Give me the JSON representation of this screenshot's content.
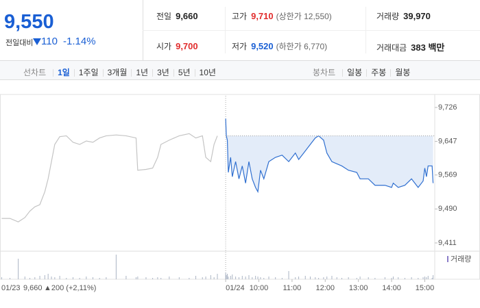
{
  "quote": {
    "price": "9,550",
    "change_label": "전일대비",
    "change": "110",
    "change_rate": "-1.14%"
  },
  "stats": [
    {
      "label": "전일",
      "value": "9,660",
      "color": "#222222"
    },
    {
      "label": "고가",
      "value": "9,710",
      "note": "(상한가 12,550)",
      "color": "#e12c2c"
    },
    {
      "label": "거래량",
      "value": "39,970",
      "color": "#222222"
    },
    {
      "label": "시가",
      "value": "9,700",
      "color": "#e12c2c"
    },
    {
      "label": "저가",
      "value": "9,520",
      "note": "(하한가 6,770)",
      "color": "#1a5fd4"
    },
    {
      "label": "거래대금",
      "value": "383 백만",
      "color": "#222222"
    }
  ],
  "tabs": {
    "line_label": "선차트",
    "line_periods": [
      "1일",
      "1주일",
      "3개월",
      "1년",
      "3년",
      "5년",
      "10년"
    ],
    "candle_label": "봉차트",
    "candle_periods": [
      "일봉",
      "주봉",
      "월봉"
    ]
  },
  "summary": {
    "date": "01/23",
    "price": "9,660",
    "change": "▲200 (+2,11%)"
  },
  "chart_data": {
    "type": "line",
    "xlim": [
      2.2,
      15.3
    ],
    "ylim": [
      9395,
      9753
    ],
    "yticks": [
      {
        "value": 9726,
        "label": "9,726"
      },
      {
        "value": 9647,
        "label": "9,647"
      },
      {
        "value": 9569,
        "label": "9,569"
      },
      {
        "value": 9490,
        "label": "9,490"
      },
      {
        "value": 9411,
        "label": "9,411"
      }
    ],
    "xticks": [
      {
        "value": 9,
        "label": "01/24"
      },
      {
        "value": 10,
        "label": "10:00"
      },
      {
        "value": 11,
        "label": "11:00"
      },
      {
        "value": 12,
        "label": "12:00"
      },
      {
        "value": 13,
        "label": "13:00"
      },
      {
        "value": 14,
        "label": "14:00"
      },
      {
        "value": 15,
        "label": "15:00"
      }
    ],
    "reference": 9660,
    "volume_label": "거래량",
    "series": [
      {
        "color": "#c4c4c4",
        "x": [
          2.25,
          2.5,
          2.75,
          2.95,
          3.1,
          3.25,
          3.4,
          3.55,
          3.65,
          3.75,
          3.85,
          4.0,
          4.2,
          4.4,
          4.6,
          4.8,
          5.0,
          5.2,
          5.4,
          5.7,
          6.0,
          6.3,
          6.35,
          6.6,
          6.8,
          6.95,
          7.05,
          7.3,
          7.6,
          7.9,
          8.1,
          8.3,
          8.4,
          8.55,
          8.65,
          8.75
        ],
        "values": [
          9468,
          9468,
          9460,
          9470,
          9485,
          9495,
          9500,
          9530,
          9560,
          9600,
          9640,
          9658,
          9660,
          9645,
          9640,
          9648,
          9645,
          9655,
          9660,
          9662,
          9660,
          9655,
          9580,
          9582,
          9585,
          9610,
          9640,
          9650,
          9660,
          9665,
          9655,
          9660,
          9610,
          9600,
          9640,
          9660
        ],
        "volume": [
          3,
          2,
          30,
          4,
          2,
          3,
          5,
          6,
          8,
          4,
          3,
          5,
          2,
          3,
          2,
          4,
          3,
          2,
          3,
          36,
          5,
          3,
          4,
          3,
          2,
          3,
          2,
          4,
          3,
          2,
          5,
          3,
          4,
          6,
          3,
          8
        ]
      },
      {
        "color": "#2f6fd0",
        "fill": "#e3ecf9",
        "x": [
          9.0,
          9.02,
          9.05,
          9.08,
          9.15,
          9.2,
          9.3,
          9.4,
          9.5,
          9.6,
          9.7,
          9.8,
          9.9,
          9.97,
          10.05,
          10.15,
          10.3,
          10.5,
          10.7,
          10.9,
          11.1,
          11.2,
          11.4,
          11.55,
          11.7,
          11.8,
          11.95,
          12.05,
          12.2,
          12.35,
          12.5,
          12.7,
          12.95,
          13.05,
          13.3,
          13.5,
          13.8,
          14.0,
          14.05,
          14.2,
          14.4,
          14.6,
          14.8,
          14.95,
          15.0,
          15.05,
          15.1,
          15.22,
          15.25
        ],
        "values": [
          9700,
          9660,
          9650,
          9575,
          9610,
          9565,
          9600,
          9560,
          9590,
          9550,
          9600,
          9560,
          9540,
          9530,
          9580,
          9560,
          9600,
          9610,
          9615,
          9600,
          9620,
          9605,
          9625,
          9640,
          9655,
          9660,
          9650,
          9620,
          9600,
          9595,
          9590,
          9580,
          9575,
          9560,
          9560,
          9545,
          9545,
          9540,
          9550,
          9540,
          9545,
          9560,
          9540,
          9555,
          9585,
          9565,
          9590,
          9590,
          9550
        ],
        "volume": [
          10,
          6,
          8,
          4,
          5,
          7,
          4,
          3,
          5,
          4,
          6,
          3,
          5,
          4,
          3,
          2,
          4,
          3,
          2,
          12,
          3,
          4,
          5,
          4,
          3,
          2,
          3,
          4,
          5,
          3,
          2,
          3,
          2,
          4,
          3,
          2,
          3,
          2,
          4,
          3,
          2,
          3,
          2,
          3,
          4,
          3,
          5,
          2,
          6
        ]
      }
    ]
  }
}
